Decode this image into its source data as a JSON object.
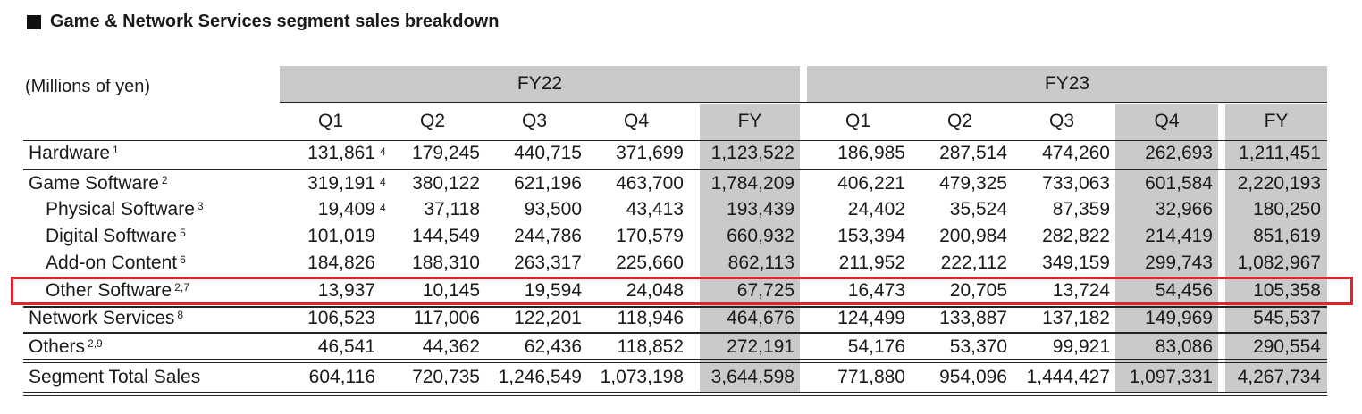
{
  "title": "Game & Network Services segment sales breakdown",
  "units": "(Millions of yen)",
  "years": [
    "FY22",
    "FY23"
  ],
  "periods": [
    "Q1",
    "Q2",
    "Q3",
    "Q4",
    "FY",
    "Q1",
    "Q2",
    "Q3",
    "Q4",
    "FY"
  ],
  "rows": [
    {
      "label": "Hardware",
      "note": "1",
      "indent": false,
      "values": [
        "131,861",
        "179,245",
        "440,715",
        "371,699",
        "1,123,522",
        "186,985",
        "287,514",
        "474,260",
        "262,693",
        "1,211,451"
      ],
      "q1_note": "4"
    },
    {
      "label": "Game Software",
      "note": "2",
      "indent": false,
      "values": [
        "319,191",
        "380,122",
        "621,196",
        "463,700",
        "1,784,209",
        "406,221",
        "479,325",
        "733,063",
        "601,584",
        "2,220,193"
      ],
      "q1_note": "4"
    },
    {
      "label": "Physical Software",
      "note": "3",
      "indent": true,
      "values": [
        "19,409",
        "37,118",
        "93,500",
        "43,413",
        "193,439",
        "24,402",
        "35,524",
        "87,359",
        "32,966",
        "180,250"
      ],
      "q1_note": "4"
    },
    {
      "label": "Digital Software",
      "note": "5",
      "indent": true,
      "values": [
        "101,019",
        "144,549",
        "244,786",
        "170,579",
        "660,932",
        "153,394",
        "200,984",
        "282,822",
        "214,419",
        "851,619"
      ],
      "q1_note": ""
    },
    {
      "label": "Add-on Content",
      "note": "6",
      "indent": true,
      "values": [
        "184,826",
        "188,310",
        "263,317",
        "225,660",
        "862,113",
        "211,952",
        "222,112",
        "349,159",
        "299,743",
        "1,082,967"
      ],
      "q1_note": ""
    },
    {
      "label": "Other Software",
      "note": "2,7",
      "indent": true,
      "values": [
        "13,937",
        "10,145",
        "19,594",
        "24,048",
        "67,725",
        "16,473",
        "20,705",
        "13,724",
        "54,456",
        "105,358"
      ],
      "q1_note": ""
    },
    {
      "label": "Network Services",
      "note": "8",
      "indent": false,
      "values": [
        "106,523",
        "117,006",
        "122,201",
        "118,946",
        "464,676",
        "124,499",
        "133,887",
        "137,182",
        "149,969",
        "545,537"
      ],
      "q1_note": ""
    },
    {
      "label": "Others",
      "note": "2,9",
      "indent": false,
      "values": [
        "46,541",
        "44,362",
        "62,436",
        "118,852",
        "272,191",
        "54,176",
        "53,370",
        "99,921",
        "83,086",
        "290,554"
      ],
      "q1_note": ""
    },
    {
      "label": "Segment Total Sales",
      "note": "",
      "indent": false,
      "values": [
        "604,116",
        "720,735",
        "1,246,549",
        "1,073,198",
        "3,644,598",
        "771,880",
        "954,096",
        "1,444,427",
        "1,097,331",
        "4,267,734"
      ],
      "q1_note": ""
    }
  ]
}
